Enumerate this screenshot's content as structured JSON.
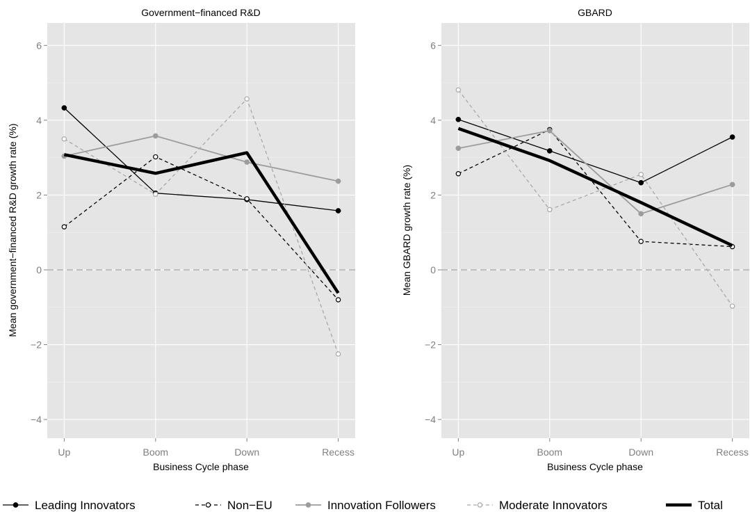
{
  "colors": {
    "panel_bg": "#e5e5e5",
    "grid": "#ffffff",
    "zero_line": "#a6a6a6",
    "tick_text": "#7f7f7f",
    "leading": "#000000",
    "non_eu": "#000000",
    "followers": "#9c9c9c",
    "moderate": "#a8a8a8",
    "total": "#000000"
  },
  "legend": [
    {
      "key": "leading",
      "label": "Leading Innovators"
    },
    {
      "key": "non_eu",
      "label": "Non−EU"
    },
    {
      "key": "followers",
      "label": "Innovation Followers"
    },
    {
      "key": "moderate",
      "label": "Moderate Innovators"
    },
    {
      "key": "total",
      "label": "Total"
    }
  ],
  "chart_data": [
    {
      "type": "line",
      "title": "Government−financed R&D",
      "xlabel": "Business Cycle phase",
      "ylabel": "Mean government−financed R&D growth rate (%)",
      "categories": [
        "Up",
        "Boom",
        "Down",
        "Recess"
      ],
      "ylim": [
        -4.5,
        6.6
      ],
      "yticks": [
        -4,
        -2,
        0,
        2,
        4,
        6
      ],
      "ytick_labels": [
        "−4",
        "−2",
        "0",
        "2",
        "4",
        "6"
      ],
      "reference_line": 0,
      "grid": true,
      "legend_position": "bottom",
      "series": [
        {
          "key": "leading",
          "name": "Leading Innovators",
          "values": [
            4.33,
            2.05,
            1.88,
            1.58
          ]
        },
        {
          "key": "non_eu",
          "name": "Non−EU",
          "values": [
            1.15,
            3.02,
            1.9,
            -0.8
          ]
        },
        {
          "key": "followers",
          "name": "Innovation Followers",
          "values": [
            3.04,
            3.58,
            2.88,
            2.37
          ]
        },
        {
          "key": "moderate",
          "name": "Moderate Innovators",
          "values": [
            3.5,
            2.02,
            4.57,
            -2.25
          ]
        },
        {
          "key": "total",
          "name": "Total",
          "values": [
            3.08,
            2.58,
            3.13,
            -0.62
          ]
        }
      ]
    },
    {
      "type": "line",
      "title": "GBARD",
      "xlabel": "Business Cycle phase",
      "ylabel": "Mean GBARD growth rate (%)",
      "categories": [
        "Up",
        "Boom",
        "Down",
        "Recess"
      ],
      "ylim": [
        -4.5,
        6.6
      ],
      "yticks": [
        -4,
        -2,
        0,
        2,
        4,
        6
      ],
      "ytick_labels": [
        "−4",
        "−2",
        "0",
        "2",
        "4",
        "6"
      ],
      "reference_line": 0,
      "grid": true,
      "legend_position": "bottom",
      "series": [
        {
          "key": "leading",
          "name": "Leading Innovators",
          "values": [
            4.02,
            3.18,
            2.33,
            3.55
          ]
        },
        {
          "key": "non_eu",
          "name": "Non−EU",
          "values": [
            2.57,
            3.75,
            0.76,
            0.62
          ]
        },
        {
          "key": "followers",
          "name": "Innovation Followers",
          "values": [
            3.25,
            3.72,
            1.5,
            2.28
          ]
        },
        {
          "key": "moderate",
          "name": "Moderate Innovators",
          "values": [
            4.81,
            1.61,
            2.55,
            -0.97
          ]
        },
        {
          "key": "total",
          "name": "Total",
          "values": [
            3.78,
            2.92,
            1.8,
            0.65
          ]
        }
      ]
    }
  ]
}
